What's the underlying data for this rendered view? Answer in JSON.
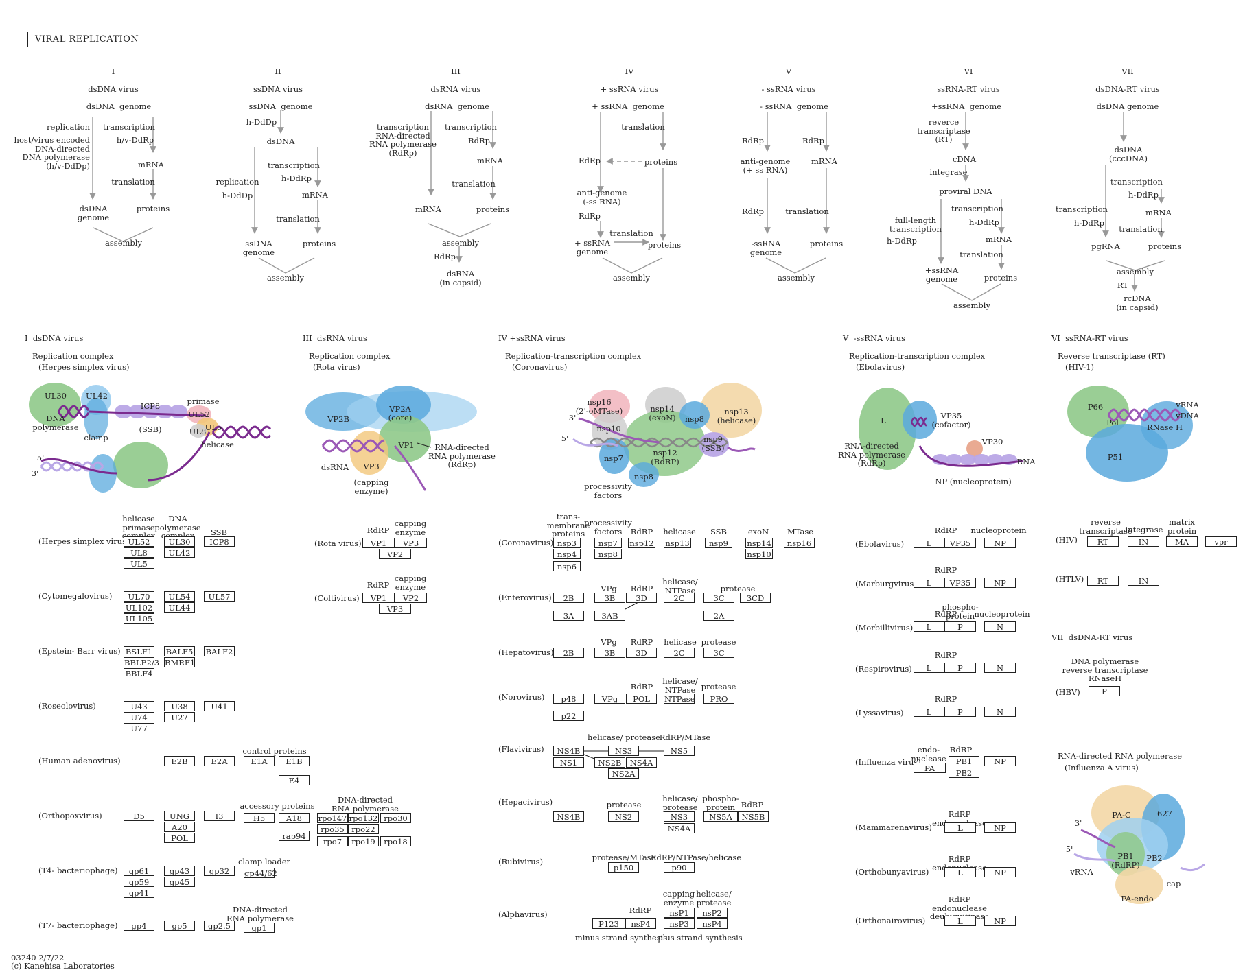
{
  "title": "VIRAL REPLICATION",
  "footer": {
    "code": "03240 2/7/22",
    "copyright": "(c) Kanehisa Laboratories"
  },
  "classes": [
    {
      "roman": "I",
      "name": "dsDNA virus"
    },
    {
      "roman": "II",
      "name": "ssDNA virus"
    },
    {
      "roman": "III",
      "name": "dsRNA virus"
    },
    {
      "roman": "IV",
      "name": "+ ssRNA virus"
    },
    {
      "roman": "V",
      "name": "- ssRNA virus"
    },
    {
      "roman": "VI",
      "name": "ssRNA-RT virus"
    },
    {
      "roman": "VII",
      "name": "dsDNA-RT virus"
    }
  ],
  "schemes": {
    "I": {
      "genome": "dsDNA  genome",
      "replication": "replication",
      "polymerase": "host/virus encoded\nDNA-directed\nDNA polymerase\n(h/v-DdDp)",
      "transcription": "transcription",
      "hv_ddrp": "h/v-DdRp",
      "mrna": "mRNA",
      "translation": "translation",
      "dsdna_genome": "dsDNA\ngenome",
      "proteins": "proteins",
      "assembly": "assembly"
    },
    "II": {
      "genome": "ssDNA  genome",
      "hddp1": "h-DdDp",
      "dsdna": "dsDNA",
      "replication": "replication",
      "hddp2": "h-DdDp",
      "transcription": "transcription",
      "hddrp": "h-DdRp",
      "mrna": "mRNA",
      "translation": "translation",
      "ssdna_genome": "ssDNA\ngenome",
      "proteins": "proteins",
      "assembly": "assembly"
    },
    "III": {
      "genome": "dsRNA  genome",
      "transcription1": "transcription\nRNA-directed\nRNA polymerase\n(RdRp)",
      "transcription2": "transcription",
      "rdrp": "RdRp",
      "mrna1": "mRNA",
      "translation": "translation",
      "mrna2": "mRNA",
      "proteins": "proteins",
      "assembly": "assembly",
      "rdrp2": "RdRp",
      "dsrna": "dsRNA\n(in capsid)"
    },
    "IV": {
      "genome": "+ ssRNA  genome",
      "translation1": "translation",
      "rdrp1": "RdRp",
      "proteins1": "proteins",
      "antigenome": "anti-genome\n(-ss RNA)",
      "rdrp2": "RdRp",
      "translation2": "translation",
      "genome2": "+ ssRNA\ngenome",
      "proteins2": "proteins",
      "assembly": "assembly"
    },
    "V": {
      "genome": "- ssRNA  genome",
      "rdrp1": "RdRp",
      "rdrp2": "RdRp",
      "antigenome": "anti-genome\n(+ ss RNA)",
      "mrna": "mRNA",
      "rdrp3": "RdRp",
      "translation": "translation",
      "genome2": "-ssRNA\ngenome",
      "proteins": "proteins",
      "assembly": "assembly"
    },
    "VI": {
      "genome": "+ssRNA  genome",
      "rt": "reverce\ntranscriptase\n(RT)",
      "cdna": "cDNA",
      "integrase": "integrase",
      "provirus": "proviral DNA",
      "fulllength": "full-length\ntranscription",
      "transcription": "transcription",
      "hddrp1": "h-DdRp",
      "hddrp2": "h-DdRp",
      "mrna": "mRNA",
      "translation": "translation",
      "genome2": "+ssRNA\ngenome",
      "proteins": "proteins",
      "assembly": "assembly"
    },
    "VII": {
      "genome": "dsDNA genome",
      "dsdna": "dsDNA\n(cccDNA)",
      "transcription1": "transcription",
      "hddrp1": "h-DdRp",
      "mrna": "mRNA",
      "transcription2": "transcription",
      "hddrp2": "h-DdRp",
      "translation": "translation",
      "pgrna": "pgRNA",
      "proteins": "proteins",
      "assembly": "assembly",
      "rt": "RT",
      "rcdna": "rcDNA\n(in capsid)"
    }
  },
  "structures": {
    "I": {
      "header": "I  dsDNA virus",
      "complex": "Replication complex",
      "virus": "(Herpes simplex virus)",
      "labels": {
        "ul30": "UL30",
        "ul42": "UL42",
        "icp8": "ICP8",
        "ssb": "(SSB)",
        "primase": "primase",
        "ul52": "UL52",
        "ul5": "UL5",
        "ul8": "UL8",
        "helicase": "helicase",
        "dnapol": "DNA\npolymerase",
        "clamp": "clamp",
        "five": "5'",
        "three": "3'"
      }
    },
    "III": {
      "header": "III  dsRNA virus",
      "complex": "Replication complex",
      "virus": "(Rota virus)",
      "labels": {
        "vp2b": "VP2B",
        "vp2a": "VP2A\n(core)",
        "vp1": "VP1",
        "rdrp": "RNA-directed\nRNA polymerase\n(RdRp)",
        "vp3": "VP3",
        "capping": "(capping\nenzyme)",
        "dsrna": "dsRNA"
      }
    },
    "IV": {
      "header": "IV +ssRNA virus",
      "complex": "Replication-transcription complex",
      "virus": "(Coronavirus)",
      "labels": {
        "nsp16": "nsp16\n(2'-oMTase)",
        "nsp14": "nsp14\n(exoN)",
        "nsp8a": "nsp8",
        "nsp13": "nsp13\n(helicase)",
        "nsp10": "nsp10",
        "nsp12": "nsp12\n(RdRP)",
        "nsp9": "nsp9\n(SSB)",
        "nsp7": "nsp7",
        "nsp8b": "nsp8",
        "processivity": "processivity\nfactors",
        "three": "3'",
        "five": "5'"
      }
    },
    "V": {
      "header": "V  -ssRNA virus",
      "complex": "Replication-transcription complex",
      "virus": "(Ebolavirus)",
      "labels": {
        "l": "L",
        "vp35": "VP35\n(cofactor)",
        "vp30": "VP30",
        "rdrp": "RNA-directed\nRNA polymerase\n(RdRp)",
        "rna": "RNA",
        "np": "NP (nucleoprotein)"
      }
    },
    "VI": {
      "header": "VI  ssRNA-RT virus",
      "complex": "Reverse transcriptase (RT)",
      "virus": "(HIV-1)",
      "labels": {
        "p66": "P66",
        "pol": "Pol",
        "vrna": "vRNA",
        "vdna": "vDNA",
        "rnaseh": "RNase H",
        "p51": "P51"
      }
    },
    "VII": {
      "header": "VII  dsDNA-RT virus"
    },
    "FLU": {
      "complex": "RNA-directed RNA polymerase",
      "virus": "(Influenza A virus)",
      "labels": {
        "pac": "PA-C",
        "six27": "627",
        "pb1": "PB1\n(RdRP)",
        "pb2": "PB2",
        "cap": "cap",
        "paendo": "PA-endo",
        "three": "3'",
        "five": "5'",
        "vrna": "vRNA"
      }
    }
  },
  "dsdna_table": {
    "col_headers": [
      "helicase\nprimase\ncomplex",
      "DNA\npolymerase\ncomplex",
      "SSB"
    ],
    "rows": [
      {
        "virus": "(Herpes simplex virus)",
        "c1": [
          "UL52",
          "UL8",
          "UL5"
        ],
        "c2": [
          "UL30",
          "UL42"
        ],
        "c3": [
          "ICP8"
        ]
      },
      {
        "virus": "(Cytomegalovirus)",
        "c1": [
          "UL70",
          "UL102",
          "UL105"
        ],
        "c2": [
          "UL54",
          "UL44"
        ],
        "c3": [
          "UL57"
        ]
      },
      {
        "virus": "(Epstein- Barr virus)",
        "c1": [
          "BSLF1",
          "BBLF2/3",
          "BBLF4"
        ],
        "c2": [
          "BALF5",
          "BMRF1"
        ],
        "c3": [
          "BALF2"
        ]
      },
      {
        "virus": "(Roseolovirus)",
        "c1": [
          "U43",
          "U74",
          "U77"
        ],
        "c2": [
          "U38",
          "U27"
        ],
        "c3": [
          "U41"
        ]
      },
      {
        "virus": "(Human adenovirus)",
        "c2": [
          "E2B"
        ],
        "c3": [
          "E2A"
        ],
        "extra_header": "control proteins",
        "extra": [
          "E1A",
          "E1B",
          "E4"
        ]
      },
      {
        "virus": "(Orthopoxvirus)",
        "c1": [
          "D5"
        ],
        "c2": [
          "UNG",
          "A20",
          "POL"
        ],
        "c3": [
          "I3"
        ],
        "extra_header": "accessory proteins",
        "extra": [
          "H5",
          "A18",
          "rap94"
        ],
        "extra2_header": "DNA-directed\nRNA polymerase",
        "extra2": [
          "rpo147",
          "rpo132",
          "rpo30",
          "rpo35",
          "rpo22",
          "rpo7",
          "rpo19",
          "rpo18"
        ]
      },
      {
        "virus": "(T4- bacteriophage)",
        "c1": [
          "gp61",
          "gp59",
          "gp41"
        ],
        "c2": [
          "gp43",
          "gp45"
        ],
        "c3": [
          "gp32"
        ],
        "extra_header": "clamp loader",
        "extra": [
          "gp44/62"
        ]
      },
      {
        "virus": "(T7- bacteriophage)",
        "c1": [
          "gp4"
        ],
        "c2": [
          "gp5"
        ],
        "c3": [
          "gp2.5"
        ],
        "extra_header": "DNA-directed\nRNA polymerase",
        "extra": [
          "gp1"
        ]
      }
    ]
  },
  "dsrna_table": {
    "rows": [
      {
        "virus": "(Rota virus)",
        "h1": "RdRP",
        "h2": "capping\nenzyme",
        "genes": [
          "VP1",
          "VP3",
          "VP2"
        ]
      },
      {
        "virus": "(Coltivirus)",
        "h1": "RdRP",
        "h2": "capping\nenzyme",
        "genes": [
          "VP1",
          "VP2",
          "VP3"
        ]
      }
    ]
  },
  "ssrna_table": {
    "col_headers": [
      "trans-\nmembrane\nproteins",
      "processivity\nfactors",
      "RdRP",
      "helicase",
      "SSB",
      "exoN",
      "MTase"
    ],
    "rows": [
      {
        "virus": "(Coronavirus)",
        "genes": [
          "nsp3",
          "nsp4",
          "nsp6",
          "nsp7",
          "nsp8",
          "nsp12",
          "nsp13",
          "nsp9",
          "nsp14",
          "nsp10",
          "nsp16"
        ]
      },
      {
        "virus": "(Enterovirus)",
        "headers": [
          "VPg",
          "RdRP",
          "helicase/\nNTPase",
          "protease"
        ],
        "genes": [
          "2B",
          "3A",
          "3B",
          "3AB",
          "3D",
          "2C",
          "3C",
          "3CD",
          "2A"
        ]
      },
      {
        "virus": "(Hepatovirus)",
        "headers": [
          "VPg",
          "RdRP",
          "helicase",
          "protease"
        ],
        "genes": [
          "2B",
          "3B",
          "3D",
          "2C",
          "3C"
        ]
      },
      {
        "virus": "(Norovirus)",
        "headers": [
          "RdRP",
          "helicase/\nNTPase",
          "protease"
        ],
        "genes": [
          "p48",
          "p22",
          "VPg",
          "POL",
          "NTPase",
          "PRO"
        ]
      },
      {
        "virus": "(Flavivirus)",
        "headers": [
          "helicase/ protease",
          "RdRP/MTase"
        ],
        "genes": [
          "NS4B",
          "NS1",
          "NS3",
          "NS2B",
          "NS4A",
          "NS2A",
          "NS5"
        ]
      },
      {
        "virus": "(Hepacivirus)",
        "headers": [
          "protease",
          "helicase/\nprotease",
          "phospho-\nprotein",
          "RdRP"
        ],
        "genes": [
          "NS4B",
          "NS2",
          "NS3",
          "NS4A",
          "NS5A",
          "NS5B"
        ]
      },
      {
        "virus": "(Rubivirus)",
        "headers": [
          "protease/MTase",
          "RdRP/NTPase/helicase"
        ],
        "genes": [
          "p150",
          "p90"
        ]
      },
      {
        "virus": "(Alphavirus)",
        "headers": [
          "RdRP",
          "capping\nenzyme",
          "helicase/\nprotease"
        ],
        "genes": [
          "P123",
          "nsP4",
          "nsP1",
          "nsP2",
          "nsP3",
          "nsP4"
        ],
        "notes": [
          "minus strand synthesis",
          "plus strand synthesis"
        ]
      }
    ]
  },
  "nssrna_table": {
    "rows": [
      {
        "virus": "(Ebolavirus)",
        "headers": [
          "RdRP",
          "nucleoprotein"
        ],
        "genes": [
          "L",
          "VP35",
          "NP"
        ]
      },
      {
        "virus": "(Marburgvirus)",
        "headers": [
          "RdRP"
        ],
        "genes": [
          "L",
          "VP35",
          "NP"
        ]
      },
      {
        "virus": "(Morbillivirus)",
        "headers": [
          "RdRP",
          "phospho-\nprotein",
          "nucleoprotein"
        ],
        "genes": [
          "L",
          "P",
          "N"
        ]
      },
      {
        "virus": "(Respirovirus)",
        "headers": [
          "RdRP"
        ],
        "genes": [
          "L",
          "P",
          "N"
        ]
      },
      {
        "virus": "(Lyssavirus)",
        "headers": [
          "RdRP"
        ],
        "genes": [
          "L",
          "P",
          "N"
        ]
      },
      {
        "virus": "(Influenza virus)",
        "headers": [
          "endo-\nnuclease",
          "RdRP"
        ],
        "genes": [
          "PA",
          "PB1",
          "PB2",
          "NP"
        ]
      },
      {
        "virus": "(Mammarenavirus)",
        "headers": [
          "RdRP\nendonuclease"
        ],
        "genes": [
          "L",
          "NP"
        ]
      },
      {
        "virus": "(Orthobunyavirus)",
        "headers": [
          "RdRP\nendonuclease"
        ],
        "genes": [
          "L",
          "NP"
        ]
      },
      {
        "virus": "(Orthonairovirus)",
        "headers": [
          "RdRP\nendonuclease\ndeubiquitinase"
        ],
        "genes": [
          "L",
          "NP"
        ]
      }
    ]
  },
  "rt_table": {
    "headers": [
      "reverse\ntranscriptase",
      "integrase",
      "matrix\nprotein"
    ],
    "rows": [
      {
        "virus": "(HIV)",
        "genes": [
          "RT",
          "IN",
          "MA",
          "vpr"
        ]
      },
      {
        "virus": "(HTLV)",
        "genes": [
          "RT",
          "IN"
        ]
      }
    ],
    "hbv_header": "DNA polymerase\nreverse transcriptase\nRNaseH",
    "hbv_virus": "(HBV)",
    "hbv_gene": "P"
  },
  "colors": {
    "green": "#8fc98a",
    "blue": "#5aa9dd",
    "lightblue": "#9fd0f0",
    "purple": "#9b59b6",
    "strand": "#7b2b8f",
    "lilac": "#b9a7e6",
    "pink": "#f2b8c0",
    "orange": "#f2c77a",
    "peach": "#f3d7a6",
    "grey": "#cfcfcf"
  }
}
